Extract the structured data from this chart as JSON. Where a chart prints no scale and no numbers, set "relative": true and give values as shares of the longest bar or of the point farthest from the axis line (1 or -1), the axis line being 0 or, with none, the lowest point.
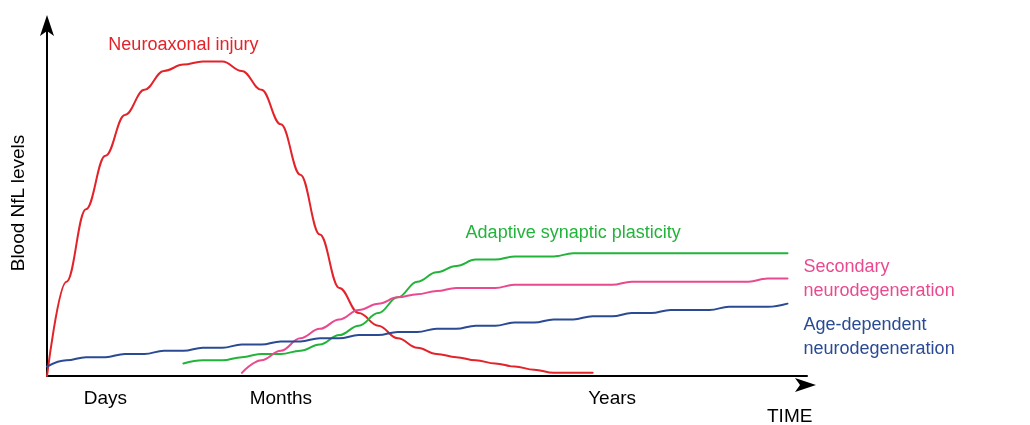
{
  "chart_data": {
    "type": "line",
    "relative": true,
    "xlabel": "TIME",
    "ylabel": "Blood NfL levels",
    "marker": "none",
    "legend": false,
    "grid": false,
    "categories": [
      null,
      null,
      null,
      "Days",
      null,
      null,
      null,
      null,
      null,
      null,
      null,
      null,
      "Months",
      null,
      null,
      null,
      null,
      null,
      null,
      null,
      null,
      null,
      null,
      null,
      null,
      null,
      null,
      null,
      null,
      "Years",
      null,
      null,
      null,
      null,
      null,
      null,
      null,
      null,
      null,
      null
    ],
    "series": [
      {
        "name": "Neuroaxonal injury",
        "color": "#e3232a",
        "values": [
          0,
          0.3,
          0.53,
          0.7,
          0.83,
          0.91,
          0.97,
          0.99,
          1.0,
          1.0,
          0.97,
          0.91,
          0.8,
          0.64,
          0.45,
          0.28,
          0.2,
          0.16,
          0.12,
          0.09,
          0.07,
          0.06,
          0.05,
          0.04,
          0.03,
          0.02,
          0.01,
          0.01,
          0.01,
          null,
          null,
          null,
          null,
          null,
          null,
          null,
          null,
          null,
          null,
          null
        ]
      },
      {
        "name": "Adaptive synaptic plasticity",
        "color": "#22b43a",
        "values": [
          null,
          null,
          null,
          null,
          null,
          null,
          null,
          0.04,
          0.05,
          0.05,
          0.06,
          0.07,
          0.07,
          0.08,
          0.1,
          0.13,
          0.16,
          0.2,
          0.25,
          0.3,
          0.33,
          0.35,
          0.37,
          0.37,
          0.38,
          0.38,
          0.38,
          0.39,
          0.39,
          0.39,
          0.39,
          0.39,
          0.39,
          0.39,
          0.39,
          0.39,
          0.39,
          0.39,
          0.39,
          null
        ]
      },
      {
        "name": "Secondary neurodegeneration",
        "color": "#e94a8f",
        "values": [
          null,
          null,
          null,
          null,
          null,
          null,
          null,
          null,
          null,
          null,
          0.01,
          0.05,
          0.08,
          0.12,
          0.15,
          0.18,
          0.21,
          0.23,
          0.25,
          0.26,
          0.27,
          0.28,
          0.28,
          0.28,
          0.29,
          0.29,
          0.29,
          0.29,
          0.29,
          0.29,
          0.3,
          0.3,
          0.3,
          0.3,
          0.3,
          0.3,
          0.3,
          0.31,
          0.31,
          null
        ]
      },
      {
        "name": "Age-dependent neurodegeneration",
        "color": "#2a4b94",
        "values": [
          0.03,
          0.05,
          0.06,
          0.06,
          0.07,
          0.07,
          0.08,
          0.08,
          0.09,
          0.09,
          0.1,
          0.1,
          0.11,
          0.11,
          0.12,
          0.12,
          0.13,
          0.13,
          0.14,
          0.14,
          0.15,
          0.15,
          0.16,
          0.16,
          0.17,
          0.17,
          0.18,
          0.18,
          0.19,
          0.19,
          0.2,
          0.2,
          0.21,
          0.21,
          0.21,
          0.22,
          0.22,
          0.22,
          0.23,
          null
        ]
      }
    ]
  }
}
